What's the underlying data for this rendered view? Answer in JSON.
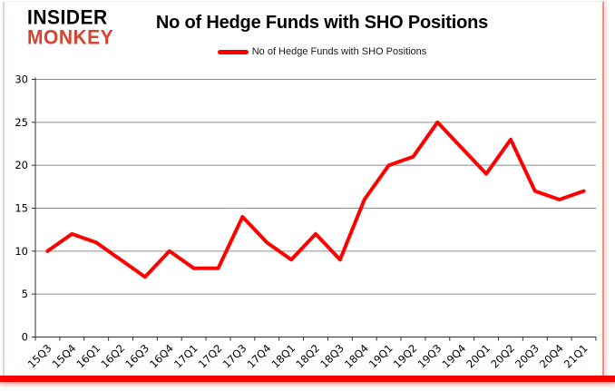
{
  "logo": {
    "line1": "INSIDER",
    "line2": "MONKEY"
  },
  "header": {
    "title": "No of Hedge Funds with SHO Positions"
  },
  "legend": {
    "label": "No of Hedge Funds with SHO Positions"
  },
  "colors": {
    "series_line": "#ff0000",
    "logo_red": "#d6432e",
    "gridline": "#8c8c8c",
    "axis": "#2b2b2b",
    "tick_label": "#000000",
    "bottom_accent_bar": "#fe0202"
  },
  "chart_data": {
    "type": "line",
    "title": "No of Hedge Funds with SHO Positions",
    "series_name": "No of Hedge Funds with SHO Positions",
    "categories": [
      "15Q3",
      "15Q4",
      "16Q1",
      "16Q2",
      "16Q3",
      "16Q4",
      "17Q1",
      "17Q2",
      "17Q3",
      "17Q4",
      "18Q1",
      "18Q2",
      "18Q3",
      "18Q4",
      "19Q1",
      "19Q2",
      "19Q3",
      "19Q4",
      "20Q1",
      "20Q2",
      "20Q3",
      "20Q4",
      "21Q1"
    ],
    "values": [
      10,
      12,
      11,
      9,
      7,
      10,
      8,
      8,
      14,
      11,
      9,
      12,
      9,
      16,
      20,
      21,
      25,
      22,
      19,
      23,
      17,
      16,
      17
    ],
    "ylim": [
      0,
      30
    ],
    "yticks": [
      0,
      5,
      10,
      15,
      20,
      25,
      30
    ],
    "grid": true,
    "legend_position": "top",
    "xlabel": "",
    "ylabel": ""
  }
}
